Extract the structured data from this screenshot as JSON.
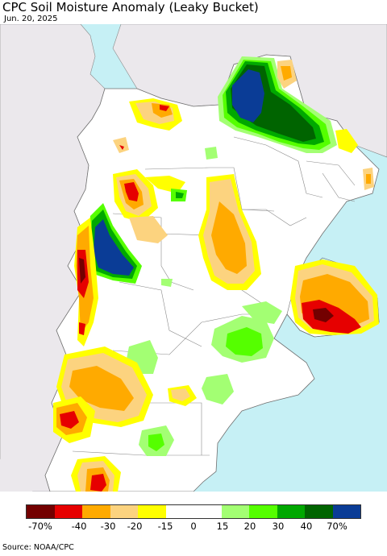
{
  "header": {
    "title": "CPC Soil Moisture Anomaly (Leaky Bucket)",
    "date": "Jun. 20, 2025"
  },
  "map": {
    "ocean_color": "#c6f0f5",
    "land_color": "#ffffff",
    "outside_land_color": "#ebe8ec",
    "border_color": "#8a8a8a"
  },
  "legend": {
    "colors": [
      "#730000",
      "#e60000",
      "#ffaa00",
      "#fcd37f",
      "#ffff00",
      "#ffffff",
      "#ffffff",
      "#a3ff73",
      "#55ff00",
      "#00a800",
      "#006400",
      "#0a3c96"
    ],
    "ticks": [
      {
        "label": "-70%"
      },
      {
        "label": "-40"
      },
      {
        "label": "-30"
      },
      {
        "label": "-20"
      },
      {
        "label": "-15"
      },
      {
        "label": "0"
      },
      {
        "label": "15"
      },
      {
        "label": "20"
      },
      {
        "label": "30"
      },
      {
        "label": "40"
      },
      {
        "label": "70%"
      }
    ]
  },
  "footer": {
    "source": "Source: NOAA/CPC"
  }
}
